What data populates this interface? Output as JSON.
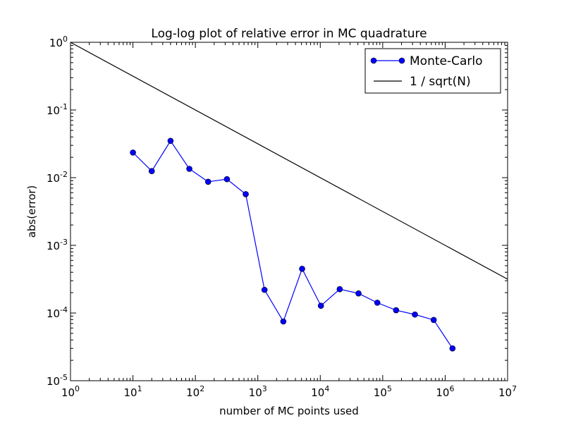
{
  "chart_data": {
    "type": "line",
    "title": "Log-log plot of relative error in MC quadrature",
    "xlabel": "number of MC points used",
    "ylabel": "abs(error)",
    "xscale": "log",
    "yscale": "log",
    "xlim": [
      1,
      10000000
    ],
    "ylim": [
      1e-05,
      1
    ],
    "grid": false,
    "legend_position": "top-right",
    "x_ticks": [
      {
        "value": 1,
        "base": "10",
        "exp": "0"
      },
      {
        "value": 10,
        "base": "10",
        "exp": "1"
      },
      {
        "value": 100,
        "base": "10",
        "exp": "2"
      },
      {
        "value": 1000,
        "base": "10",
        "exp": "3"
      },
      {
        "value": 10000,
        "base": "10",
        "exp": "4"
      },
      {
        "value": 100000,
        "base": "10",
        "exp": "5"
      },
      {
        "value": 1000000,
        "base": "10",
        "exp": "6"
      },
      {
        "value": 10000000,
        "base": "10",
        "exp": "7"
      }
    ],
    "y_ticks": [
      {
        "value": 1,
        "base": "10",
        "exp": "0"
      },
      {
        "value": 0.1,
        "base": "10",
        "exp": "-1"
      },
      {
        "value": 0.01,
        "base": "10",
        "exp": "-2"
      },
      {
        "value": 0.001,
        "base": "10",
        "exp": "-3"
      },
      {
        "value": 0.0001,
        "base": "10",
        "exp": "-4"
      },
      {
        "value": 1e-05,
        "base": "10",
        "exp": "-5"
      }
    ],
    "series": [
      {
        "name": "Monte-Carlo",
        "color": "#0000ff",
        "marker": "circle",
        "x": [
          10,
          20,
          40,
          80,
          160,
          320,
          640,
          1280,
          2560,
          5120,
          10240,
          20480,
          40960,
          81920,
          163840,
          327680,
          655360,
          1310720
        ],
        "y": [
          0.0235,
          0.0125,
          0.035,
          0.0135,
          0.0087,
          0.0095,
          0.0057,
          0.00022,
          7.5e-05,
          0.00045,
          0.000128,
          0.000225,
          0.000195,
          0.000142,
          0.00011,
          9.5e-05,
          7.9e-05,
          3e-05
        ]
      },
      {
        "name": "1 / sqrt(N)",
        "color": "#000000",
        "marker": "none",
        "x": [
          1,
          10000000
        ],
        "y": [
          1,
          0.000316
        ]
      }
    ]
  }
}
